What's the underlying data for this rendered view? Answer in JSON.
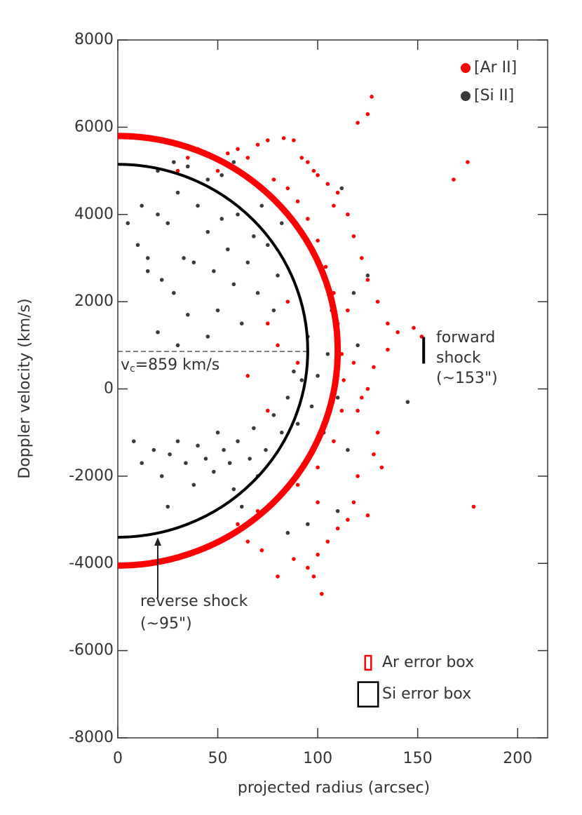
{
  "chart_data": {
    "type": "scatter",
    "xlabel": "projected radius (arcsec)",
    "ylabel": "Doppler velocity (km/s)",
    "xlim": [
      0,
      215
    ],
    "ylim": [
      -8000,
      8000
    ],
    "xticks": [
      0,
      50,
      100,
      150,
      200
    ],
    "yticks": [
      -8000,
      -6000,
      -4000,
      -2000,
      0,
      2000,
      4000,
      6000,
      8000
    ],
    "legend": "upper right",
    "series": [
      {
        "name": "[Ar II]",
        "color": "#ff0000",
        "x": [
          40,
          48,
          55,
          60,
          65,
          70,
          75,
          83,
          88,
          92,
          95,
          100,
          105,
          110,
          120,
          125,
          127,
          115,
          118,
          122,
          125,
          130,
          135,
          140,
          148,
          152,
          135,
          128,
          125,
          120,
          130,
          128,
          132,
          120,
          118,
          115,
          110,
          105,
          100,
          98,
          102,
          95,
          88,
          80,
          72,
          65,
          60,
          70,
          80,
          90,
          100,
          108,
          112,
          113,
          112,
          110,
          108,
          104,
          100,
          95,
          90,
          85,
          78,
          75,
          80,
          85,
          90,
          75,
          65,
          175,
          168,
          178,
          115,
          118,
          122,
          105,
          100,
          125,
          108,
          98,
          50,
          30,
          35
        ],
        "values": [
          5500,
          5300,
          5400,
          5500,
          5300,
          5600,
          5700,
          5750,
          5700,
          5300,
          5200,
          4900,
          4700,
          4500,
          6100,
          6300,
          6700,
          4000,
          3500,
          3000,
          2500,
          2000,
          1500,
          1300,
          1400,
          1200,
          900,
          500,
          0,
          -500,
          -1000,
          -1500,
          -1800,
          -2000,
          -2600,
          -3000,
          -3200,
          -3500,
          -3800,
          -4300,
          -4700,
          -4100,
          -3900,
          -4300,
          -3700,
          -3500,
          -3100,
          -2800,
          -2500,
          -2200,
          -1800,
          -1200,
          -500,
          200,
          800,
          1500,
          2200,
          2800,
          3400,
          3900,
          4300,
          4600,
          4800,
          1500,
          1000,
          2000,
          600,
          -500,
          300,
          5200,
          4800,
          -2700,
          1800,
          600,
          -200,
          -600,
          -2600,
          -2900,
          4200,
          5000,
          5000,
          5000,
          5300
        ]
      },
      {
        "name": "[Si II]",
        "color": "#3a3a3a",
        "x": [
          5,
          10,
          12,
          15,
          20,
          22,
          25,
          28,
          30,
          33,
          35,
          38,
          40,
          45,
          48,
          50,
          52,
          55,
          58,
          60,
          62,
          65,
          68,
          70,
          72,
          75,
          78,
          80,
          82,
          20,
          30,
          45,
          8,
          12,
          18,
          22,
          26,
          30,
          34,
          38,
          40,
          44,
          48,
          50,
          53,
          56,
          58,
          60,
          62,
          66,
          68,
          70,
          74,
          78,
          82,
          85,
          88,
          90,
          92,
          95,
          97,
          100,
          103,
          105,
          107,
          110,
          115,
          118,
          120,
          125,
          112,
          145,
          110,
          95,
          85,
          15,
          25,
          45,
          52,
          58,
          35,
          28,
          20
        ],
        "values": [
          3800,
          3300,
          4200,
          3000,
          4000,
          2500,
          3800,
          2200,
          4500,
          3000,
          1700,
          2900,
          4200,
          3600,
          2700,
          1800,
          3900,
          3200,
          2400,
          4000,
          1500,
          2900,
          3500,
          2200,
          4200,
          3300,
          1800,
          2600,
          3800,
          1300,
          1000,
          1200,
          -1200,
          -1700,
          -1400,
          -2000,
          -1500,
          -1200,
          -1700,
          -2200,
          -1300,
          -1600,
          -1900,
          -1000,
          -1400,
          -1700,
          -2300,
          -1200,
          -2700,
          -1600,
          -900,
          -2000,
          -1400,
          -600,
          -1000,
          -200,
          400,
          -800,
          200,
          1200,
          -400,
          300,
          -1000,
          800,
          1800,
          -200,
          -1400,
          2200,
          1000,
          2600,
          4600,
          -300,
          -2800,
          -3100,
          -3300,
          2700,
          -2700,
          4800,
          4900,
          5200,
          5100,
          5200,
          5000
        ]
      }
    ],
    "shells": [
      {
        "color": "#ff0000",
        "r_max": 110,
        "v_top": 5800,
        "v_bottom": -4050
      },
      {
        "color": "#000000",
        "r_max": 95,
        "v_top": 5150,
        "v_bottom": -3400
      }
    ],
    "center_velocity": {
      "symbol": "v",
      "subscript": "c",
      "text": "=859 km/s",
      "value": 859
    },
    "forward_shock": {
      "lines": [
        "forward",
        "shock",
        "(~153\")"
      ],
      "x": 153,
      "y": [
        580,
        1190
      ]
    },
    "reverse_shock": {
      "lines": [
        "reverse shock",
        "(~95\")"
      ],
      "x": 20,
      "y": [
        -4800,
        -3400
      ]
    },
    "error_boxes": [
      {
        "label": "Ar error box",
        "color": "#ff0000",
        "dx": 3,
        "dy": 320
      },
      {
        "label": "Si error box",
        "color": "#000000",
        "dx": 10,
        "dy": 560
      }
    ]
  }
}
